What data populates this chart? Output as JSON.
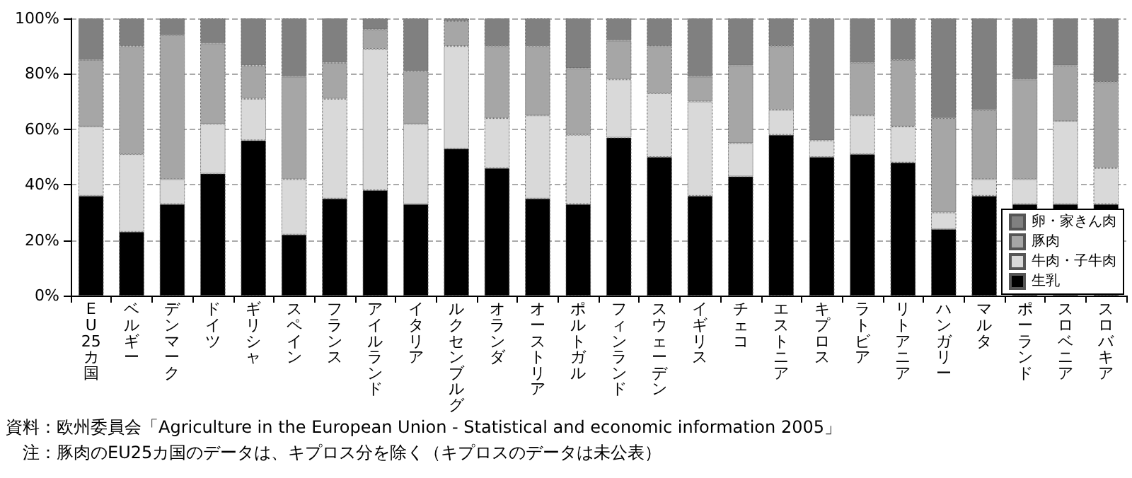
{
  "chart_data": {
    "type": "bar",
    "stacked": true,
    "categories": [
      "EU25カ国",
      "ベルギー",
      "デンマーク",
      "ドイツ",
      "ギリシャ",
      "スペイン",
      "フランス",
      "アイルランド",
      "イタリア",
      "ルクセンブルグ",
      "オランダ",
      "オーストリア",
      "ポルトガル",
      "フィンランド",
      "スウェーデン",
      "イギリス",
      "チェコ",
      "エストニア",
      "キプロス",
      "ラトビア",
      "リトアニア",
      "ハンガリー",
      "マルタ",
      "ポーランド",
      "スロベニア",
      "スロバキア"
    ],
    "series": [
      {
        "name": "生乳",
        "color": "#000000",
        "values": [
          36,
          23,
          33,
          44,
          56,
          22,
          35,
          38,
          33,
          53,
          46,
          35,
          33,
          57,
          50,
          36,
          43,
          58,
          50,
          51,
          48,
          24,
          36,
          33,
          33,
          33
        ]
      },
      {
        "name": "牛肉・子牛肉",
        "color": "#d9d9d9",
        "values": [
          25,
          28,
          9,
          18,
          15,
          20,
          36,
          51,
          29,
          37,
          18,
          30,
          25,
          21,
          23,
          34,
          12,
          9,
          6,
          14,
          13,
          6,
          6,
          9,
          30,
          13
        ]
      },
      {
        "name": "豚肉",
        "color": "#a6a6a6",
        "values": [
          24,
          39,
          52,
          29,
          12,
          37,
          13,
          7,
          19,
          9,
          26,
          25,
          24,
          14,
          17,
          9,
          28,
          23,
          null,
          19,
          24,
          34,
          25,
          36,
          20,
          31
        ]
      },
      {
        "name": "卵・家きん肉",
        "color": "#808080",
        "values": [
          15,
          10,
          6,
          9,
          17,
          21,
          16,
          4,
          19,
          1,
          10,
          10,
          18,
          8,
          10,
          21,
          17,
          10,
          44,
          16,
          15,
          36,
          33,
          22,
          17,
          23
        ]
      }
    ],
    "ylim": [
      0,
      100
    ],
    "yticks": [
      {
        "value": 0,
        "label": "0%"
      },
      {
        "value": 20,
        "label": "20%"
      },
      {
        "value": 40,
        "label": "40%"
      },
      {
        "value": 60,
        "label": "60%"
      },
      {
        "value": 80,
        "label": "80%"
      },
      {
        "value": 100,
        "label": "100%"
      }
    ],
    "grid": "y",
    "legend": "bottom right",
    "annotations": [
      "資料：欧州委員会「Agriculture in the European Union - Statistical and economic information 2005」",
      "　注：豚肉のEU25カ国のデータは、キプロス分を除く（キプロスのデータは未公表）"
    ]
  }
}
